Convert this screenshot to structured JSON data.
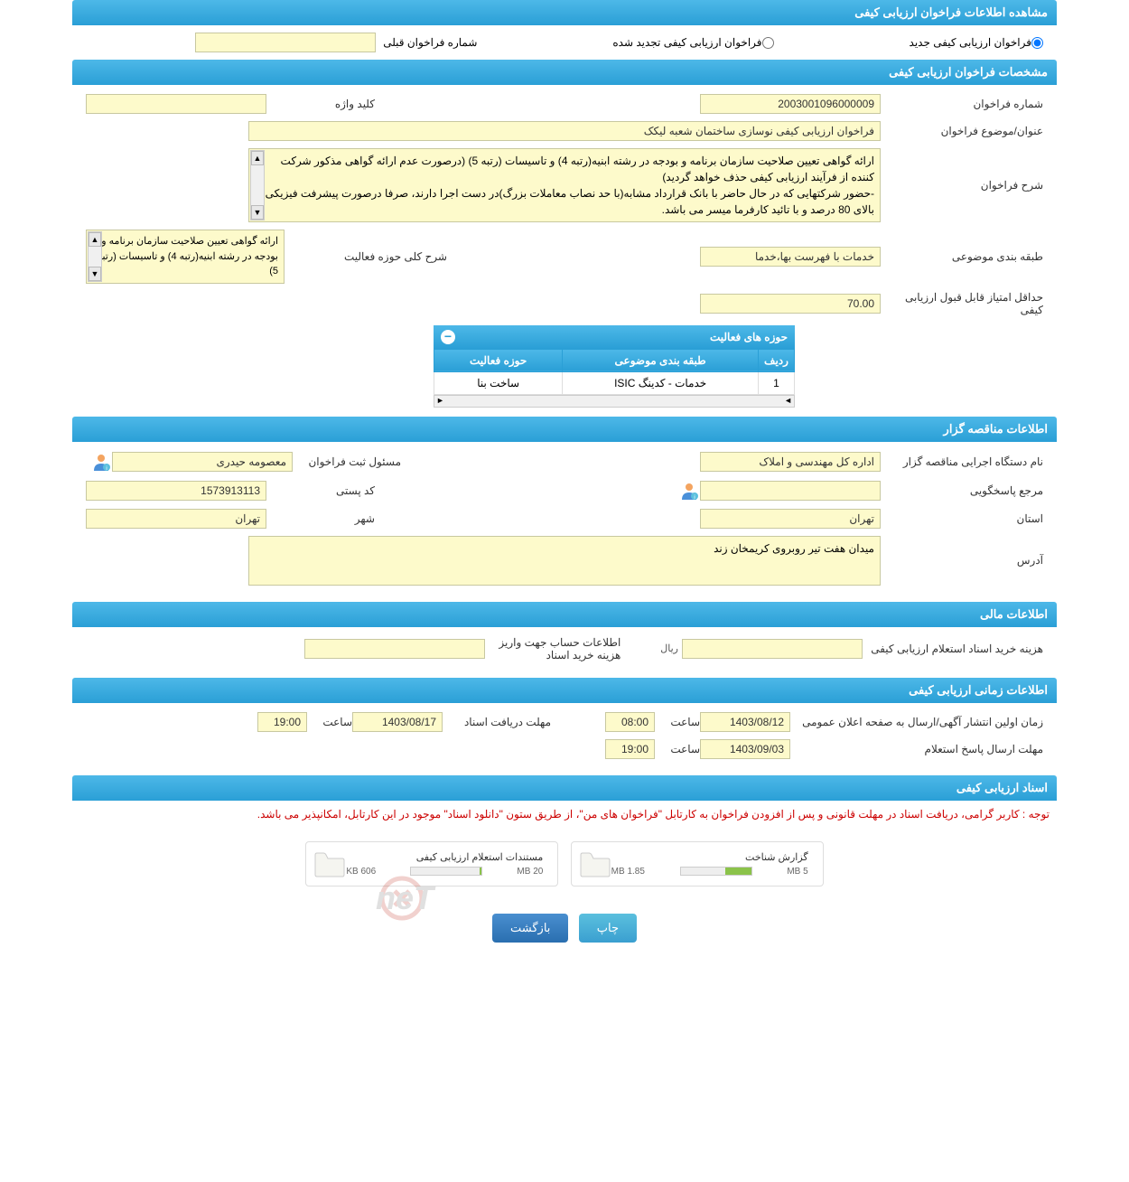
{
  "main_title": "مشاهده اطلاعات فراخوان ارزیابی کیفی",
  "radios": {
    "new_label": "فراخوان ارزیابی کیفی جدید",
    "renewed_label": "فراخوان ارزیابی کیفی تجدید شده",
    "prev_label": "شماره فراخوان قبلی"
  },
  "section1": {
    "title": "مشخصات فراخوان ارزیابی کیفی",
    "call_number_label": "شماره فراخوان",
    "call_number": "2003001096000009",
    "keyword_label": "کلید واژه",
    "keyword": "",
    "subject_label": "عنوان/موضوع فراخوان",
    "subject": "فراخوان ارزیابی کیفی نوسازی ساختمان شعبه لیکک",
    "desc_label": "شرح فراخوان",
    "desc": "ارائه گواهی تعیین صلاحیت سازمان برنامه و بودجه در رشته ابنیه(رتبه 4) و تاسیسات (رتبه 5) (درصورت عدم ارائه گواهی مذکور شرکت کننده از فرآیند ارزیابی کیفی حذف خواهد گردید)\n-حضور شرکتهایی که در حال حاضر با بانک قرارداد مشابه(با حد نصاب معاملات بزرگ)در دست اجرا دارند، صرفا درصورت پیشرفت فیزیکی بالای 80 درصد و با تائید کارفرما میسر می باشد.",
    "category_label": "طبقه بندی موضوعی",
    "category": "خدمات با فهرست بها،خدما",
    "min_score_label": "حداقل امتیاز قابل قبول ارزیابی کیفی",
    "min_score": "70.00",
    "activity_scope_label": "شرح کلی حوزه فعالیت",
    "activity_scope": "ارائه گواهی تعیین صلاحیت سازمان برنامه و بودجه در رشته ابنیه(رتبه 4) و تاسیسات (رتبه 5)"
  },
  "activities_table": {
    "title": "حوزه های فعالیت",
    "col_row": "ردیف",
    "col_category": "طبقه بندی موضوعی",
    "col_activity": "حوزه فعالیت",
    "rows": [
      {
        "num": "1",
        "category": "خدمات - کدینگ ISIC",
        "activity": "ساخت بنا"
      }
    ]
  },
  "section2": {
    "title": "اطلاعات مناقصه گزار",
    "org_label": "نام دستگاه اجرایی مناقصه گزار",
    "org": "اداره کل مهندسی و املاک",
    "registrar_label": "مسئول ثبت فراخوان",
    "registrar": "معصومه حیدری",
    "responder_label": "مرجع پاسخگویی",
    "responder": "",
    "postal_label": "کد پستی",
    "postal": "1573913113",
    "province_label": "استان",
    "province": "تهران",
    "city_label": "شهر",
    "city": "تهران",
    "address_label": "آدرس",
    "address": "میدان هفت تیر روبروی کریمخان زند"
  },
  "section3": {
    "title": "اطلاعات مالی",
    "doc_cost_label": "هزینه خرید اسناد استعلام ارزیابی کیفی",
    "doc_cost": "",
    "currency": "ریال",
    "account_label": "اطلاعات حساب جهت واریز هزینه خرید اسناد",
    "account": ""
  },
  "section4": {
    "title": "اطلاعات زمانی ارزیابی کیفی",
    "publish_label": "زمان اولین انتشار آگهی/ارسال به صفحه اعلان عمومی",
    "publish_date": "1403/08/12",
    "publish_time": "08:00",
    "deadline_label": "مهلت دریافت اسناد",
    "deadline_date": "1403/08/17",
    "deadline_time": "19:00",
    "response_label": "مهلت ارسال پاسخ استعلام",
    "response_date": "1403/09/03",
    "response_time": "19:00",
    "time_label": "ساعت"
  },
  "section5": {
    "title": "اسناد ارزیابی کیفی",
    "notice": "توجه : کاربر گرامی، دریافت اسناد در مهلت قانونی و پس از افزودن فراخوان به کارتابل \"فراخوان های من\"، از طریق ستون \"دانلود اسناد\" موجود در این کارتابل، امکانپذیر می باشد.",
    "doc1_title": "گزارش شناخت",
    "doc1_size": "1.85 MB",
    "doc1_max": "5 MB",
    "doc1_pct": 37,
    "doc2_title": "مستندات استعلام ارزیابی کیفی",
    "doc2_size": "606 KB",
    "doc2_max": "20 MB",
    "doc2_pct": 3
  },
  "buttons": {
    "print": "چاپ",
    "back": "بازگشت"
  },
  "colors": {
    "header_bg": "#2a9fd6",
    "field_bg": "#fdfacb",
    "notice_color": "#cc0000"
  }
}
